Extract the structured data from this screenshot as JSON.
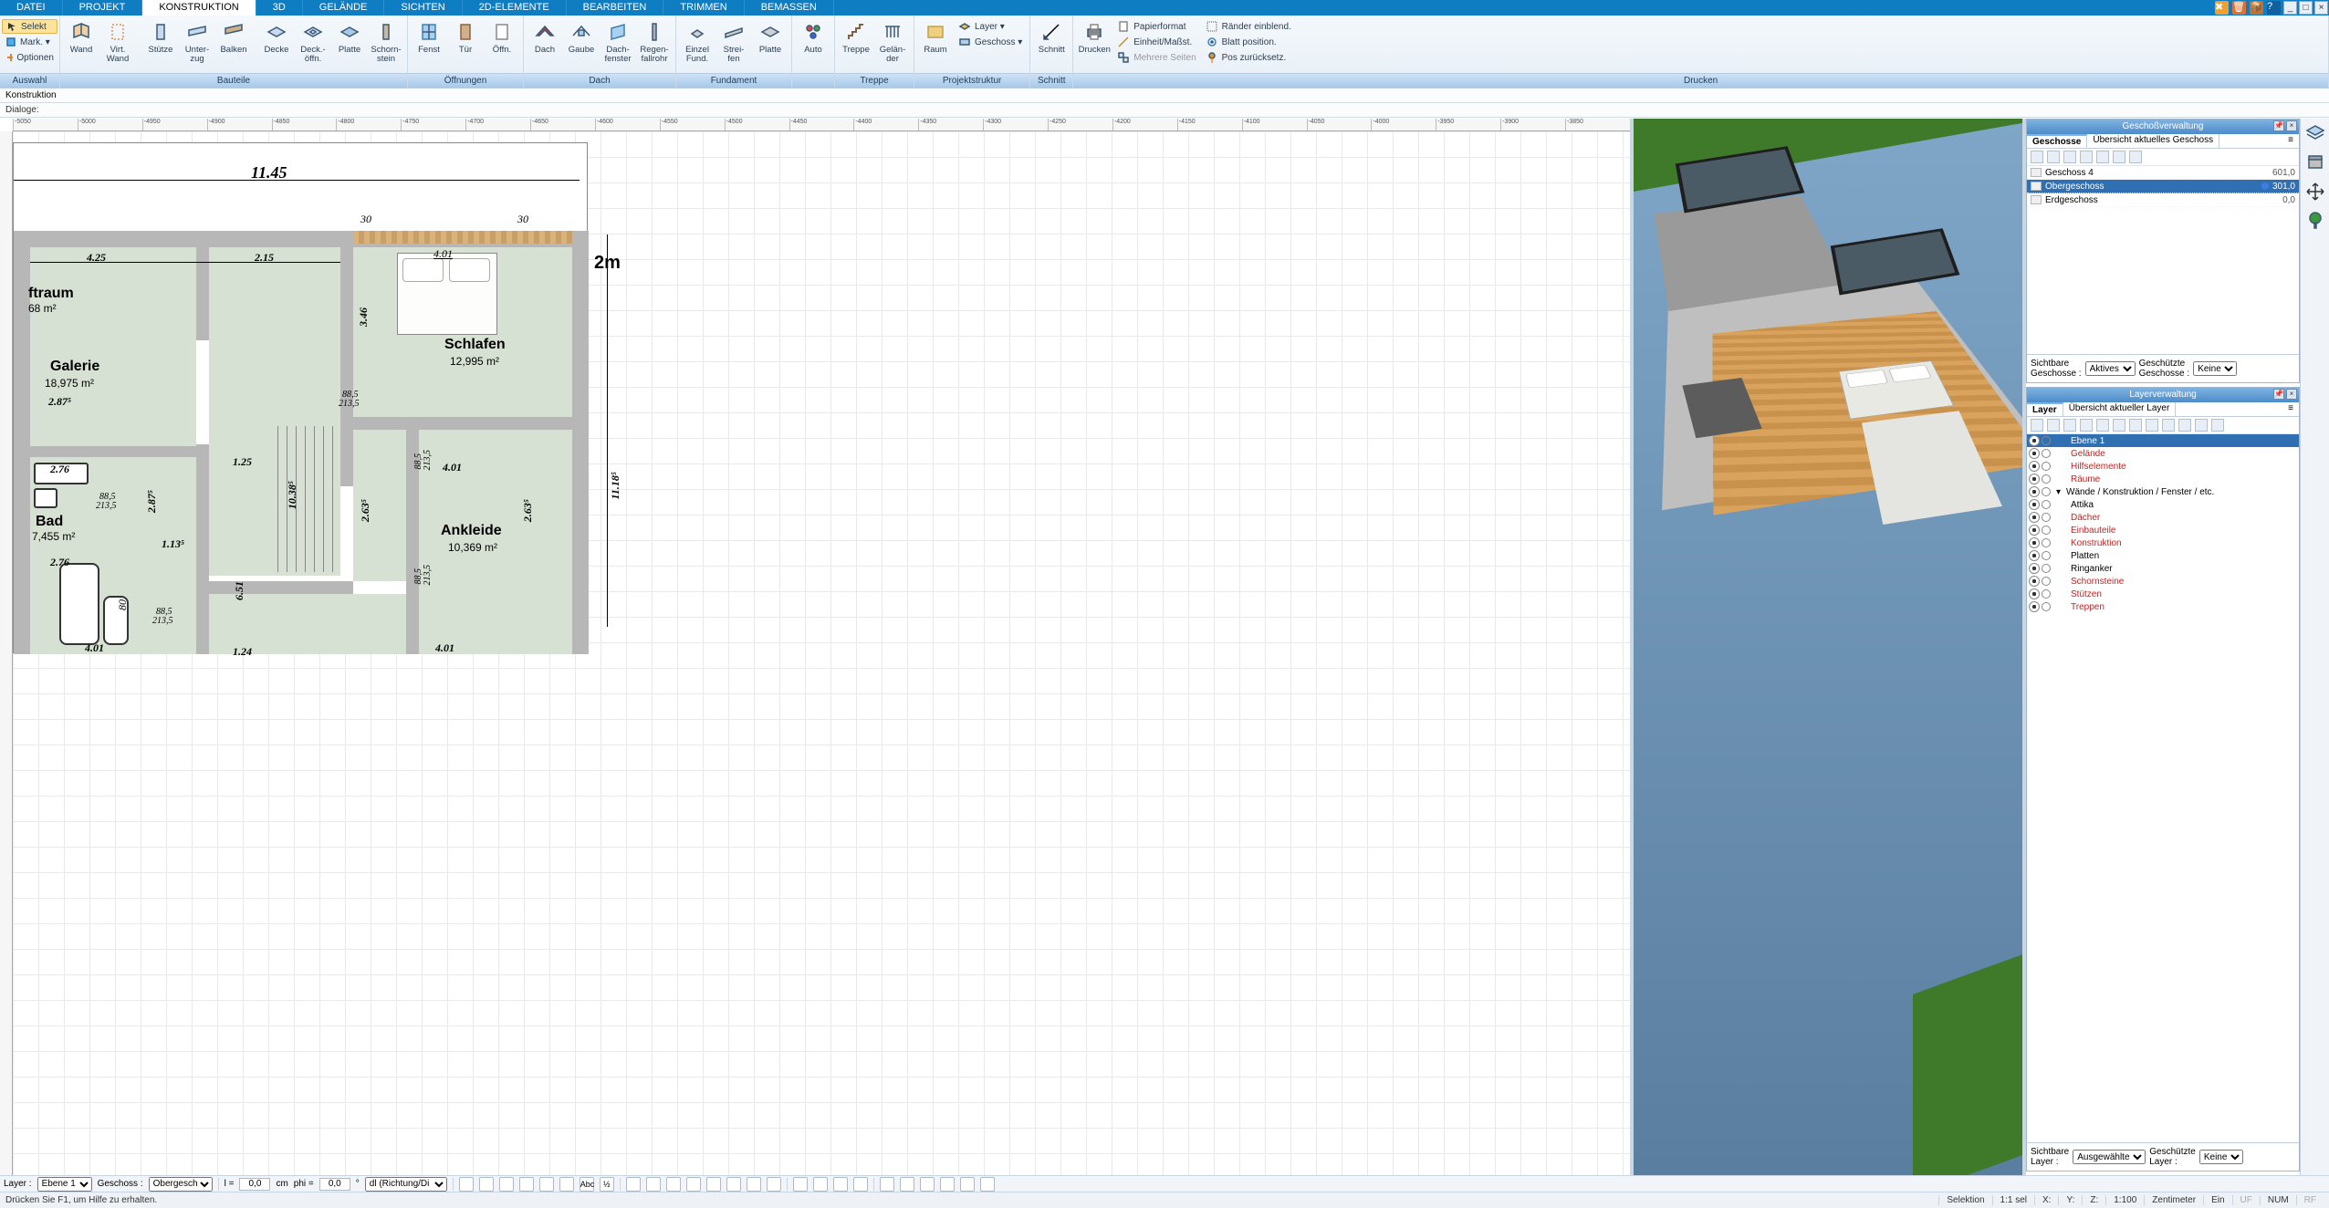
{
  "menubar": {
    "tabs": [
      "DATEI",
      "PROJEKT",
      "KONSTRUKTION",
      "3D",
      "GELÄNDE",
      "SICHTEN",
      "2D-ELEMENTE",
      "BEARBEITEN",
      "TRIMMEN",
      "BEMASSEN"
    ],
    "active_index": 2
  },
  "ribbon": {
    "auswahl": {
      "title": "Auswahl",
      "rows": [
        {
          "label": "Selekt"
        },
        {
          "label": "Mark. ▾"
        },
        {
          "label": "Optionen"
        }
      ]
    },
    "bauteile": {
      "title": "Bauteile",
      "items": [
        {
          "label": "Wand"
        },
        {
          "label": "Virt.\nWand"
        },
        {
          "label": "Stütze"
        },
        {
          "label": "Unter-\nzug"
        },
        {
          "label": "Balken"
        },
        {
          "label": "Decke"
        },
        {
          "label": "Deck.-\nöffn."
        },
        {
          "label": "Platte"
        },
        {
          "label": "Schorn-\nstein"
        }
      ]
    },
    "oeffnungen": {
      "title": "Öffnungen",
      "items": [
        {
          "label": "Fenst"
        },
        {
          "label": "Tür"
        },
        {
          "label": "Öffn."
        }
      ]
    },
    "dach": {
      "title": "Dach",
      "items": [
        {
          "label": "Dach"
        },
        {
          "label": "Gaube"
        },
        {
          "label": "Dach-\nfenster"
        },
        {
          "label": "Regen-\nfallrohr"
        }
      ]
    },
    "fundament": {
      "title": "Fundament",
      "items": [
        {
          "label": "Einzel\nFund."
        },
        {
          "label": "Strei-\nfen"
        },
        {
          "label": "Platte"
        }
      ]
    },
    "treppe": {
      "title": "Treppe",
      "items": [
        {
          "label": "Auto"
        },
        {
          "label": "Treppe"
        },
        {
          "label": "Gelän-\nder"
        }
      ]
    },
    "projektstruktur": {
      "title": "Projektstruktur",
      "items": [
        {
          "label": "Raum"
        }
      ],
      "rows": [
        {
          "label": "Layer ▾"
        },
        {
          "label": "Geschoss ▾"
        }
      ]
    },
    "schnitt": {
      "title": "Schnitt",
      "items": [
        {
          "label": "Schnitt"
        }
      ]
    },
    "drucken": {
      "title": "Drucken",
      "items": [
        {
          "label": "Drucken"
        }
      ],
      "rows": [
        {
          "label": "Papierformat"
        },
        {
          "label": "Einheit/Maßst."
        },
        {
          "label": "Mehrere Seiten"
        },
        {
          "label": "Ränder einblend."
        },
        {
          "label": "Blatt position."
        },
        {
          "label": "Pos zurücksetz."
        }
      ]
    }
  },
  "infobar1": "Konstruktion",
  "infobar2": "Dialoge:",
  "plan": {
    "ruler_labels": [
      "-5050",
      "-5000",
      "-4950",
      "-4900",
      "-4850",
      "-4800",
      "-4750",
      "-4700",
      "-4650",
      "-4600",
      "-4550",
      "-4500",
      "-4450",
      "-4400",
      "-4350",
      "-4300",
      "-4250",
      "-4200",
      "-4150",
      "-4100",
      "-4050",
      "-4000",
      "-3950",
      "-3900",
      "-3850"
    ],
    "sheet_bg": "#ffffff",
    "grid_color": "#e9e9e9",
    "room_fill": "#d7e1d3",
    "wall_fill": "#b7b7b7",
    "total_width": "11.45",
    "scale_marker": "2m",
    "overhang1": "30",
    "overhang2": "30",
    "deck_span": "4.01",
    "dims": {
      "d425": "4.25",
      "d215": "2.15",
      "d346": "3.46",
      "d401": "4.01",
      "d125": "1.25",
      "d263a": "2.63⁵",
      "d263b": "2.63⁵",
      "d1038": "10.38⁵",
      "d113": "1.13⁵",
      "d885a": "88,5",
      "d2135a": "213,5",
      "d885b": "88,5",
      "d2135b": "213,5",
      "d885c": "88,5",
      "d2135c": "213,5",
      "d885d": "88,5",
      "d2135d": "213,5",
      "d885e": "88,5",
      "d2135e": "213,5",
      "d885f": "88,5",
      "d2135f": "213,5",
      "d651": "6.51",
      "d1118": "11.18⁵",
      "d80": "80",
      "d124": "1.24",
      "d276a": "2.76",
      "d276b": "2.76",
      "d287a": "2.87⁵",
      "d287b": "2.87⁵",
      "d401b": "4.01",
      "d401c": "4.01"
    },
    "rooms": {
      "luftraum": {
        "name": "ftraum",
        "area": "68 m²"
      },
      "galerie": {
        "name": "Galerie",
        "area": "18,975 m²"
      },
      "schlafen": {
        "name": "Schlafen",
        "area": "12,995 m²"
      },
      "bad": {
        "name": "Bad",
        "area": "7,455 m²"
      },
      "ankleide": {
        "name": "Ankleide",
        "area": "10,369 m²"
      }
    }
  },
  "view3d": {
    "sky_top": "#7fa6c7",
    "sky_bot": "#5a7ea0",
    "grass": "#3e7a2a",
    "deck": "#d9a35e",
    "wall": "#bfbfbf",
    "roof": "#9a9a9a",
    "skylight_frame": "#1e1e1e",
    "skylight_glass": "#4b5b66"
  },
  "geschoss_panel": {
    "title": "Geschoßverwaltung",
    "tab1": "Geschosse",
    "tab2": "Übersicht aktuelles Geschoss",
    "rows": [
      {
        "name": "Geschoss 4",
        "val": "601,0"
      },
      {
        "name": "Obergeschoss",
        "val": "301,0",
        "sel": true
      },
      {
        "name": "Erdgeschoss",
        "val": "0,0"
      }
    ],
    "sichtbare_label": "Sichtbare\nGeschosse :",
    "sichtbare_value": "Aktives",
    "geschuetzte_label": "Geschützte\nGeschosse :",
    "geschuetzte_value": "Keine"
  },
  "layer_panel": {
    "title": "Layerverwaltung",
    "tab1": "Layer",
    "tab2": "Übersicht aktueller Layer",
    "rows": [
      {
        "name": "Ebene 1",
        "sel": true
      },
      {
        "name": "Gelände",
        "red": true
      },
      {
        "name": "Hilfselemente",
        "red": true
      },
      {
        "name": "Räume",
        "red": true
      },
      {
        "name": "Wände / Konstruktion / Fenster / etc.",
        "tree": true
      },
      {
        "name": "Attika"
      },
      {
        "name": "Dächer",
        "red": true
      },
      {
        "name": "Einbauteile",
        "red": true
      },
      {
        "name": "Konstruktion",
        "red": true
      },
      {
        "name": "Platten"
      },
      {
        "name": "Ringanker"
      },
      {
        "name": "Schornsteine",
        "red": true
      },
      {
        "name": "Stützen",
        "red": true
      },
      {
        "name": "Treppen",
        "red": true
      }
    ],
    "sichtbare_label": "Sichtbare\nLayer :",
    "sichtbare_value": "Ausgewählte",
    "geschuetzte_label": "Geschützte\nLayer :",
    "geschuetzte_value": "Keine"
  },
  "botbar": {
    "layer_label": "Layer :",
    "layer_value": "Ebene 1",
    "geschoss_label": "Geschoss :",
    "geschoss_value": "Obergescho",
    "l_label": "l =",
    "l_value": "0,0",
    "l_unit": "cm",
    "phi_label": "phi =",
    "phi_value": "0,0",
    "phi_unit": "°",
    "dl_label": "dl (Richtung/Di"
  },
  "statusbar": {
    "help": "Drücken Sie F1, um Hilfe zu erhalten.",
    "selektion": "Selektion",
    "sel_ratio": "1:1 sel",
    "x": "X:",
    "y": "Y:",
    "z": "Z:",
    "scale": "1:100",
    "unit": "Zentimeter",
    "ein": "Ein",
    "uf": "UF",
    "num": "NUM",
    "rf": "RF"
  }
}
